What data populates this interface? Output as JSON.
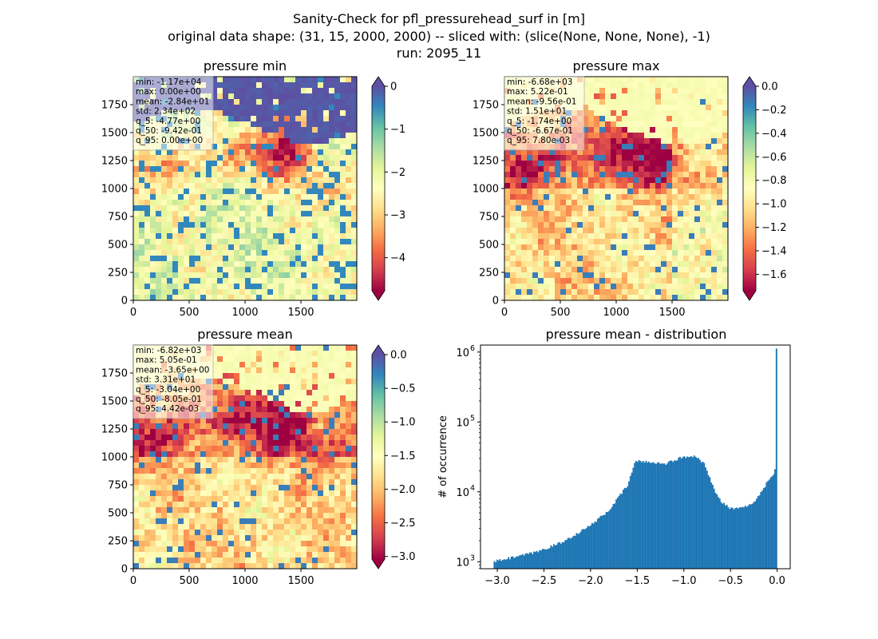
{
  "figure": {
    "title_lines": [
      "Sanity-Check for pfl_pressurehead_surf in [m]",
      "original data shape: (31, 15, 2000, 2000) -- sliced with: (slice(None, None, None), -1)",
      "run: 2095_11"
    ]
  },
  "colors": {
    "spectral": [
      "#9e0142",
      "#d53e4f",
      "#f46d43",
      "#fdae61",
      "#fee08b",
      "#ffffbf",
      "#e6f598",
      "#abdda4",
      "#66c2a5",
      "#3288bd",
      "#5e4fa2"
    ],
    "hist_bar": "#1f77b4"
  },
  "chart_data": [
    {
      "type": "heatmap",
      "title": "pressure min",
      "xlim": [
        0,
        2000
      ],
      "ylim": [
        0,
        2000
      ],
      "xticks": [
        "0",
        "500",
        "1000",
        "1500"
      ],
      "yticks": [
        "0",
        "250",
        "500",
        "750",
        "1000",
        "1250",
        "1500",
        "1750"
      ],
      "colorbar": {
        "min": -4.77,
        "max": 0.0,
        "ticks": [
          "0",
          "−1",
          "−2",
          "−3",
          "−4"
        ],
        "tick_values": [
          0,
          -1,
          -2,
          -3,
          -4
        ],
        "extend": "both"
      },
      "stats": [
        "min: -1.17e+04",
        "max: 0.00e+00",
        "mean: -2.84e+01",
        "std: 2.34e+02",
        "q_5: -4.77e+00",
        "q_50: -9.42e-01",
        "q_95: 0.00e+00"
      ],
      "colormap": "Spectral"
    },
    {
      "type": "heatmap",
      "title": "pressure max",
      "xlim": [
        0,
        2000
      ],
      "ylim": [
        0,
        2000
      ],
      "xticks": [
        "0",
        "500",
        "1000",
        "1500"
      ],
      "yticks": [
        "0",
        "250",
        "500",
        "750",
        "1000",
        "1250",
        "1500",
        "1750"
      ],
      "colorbar": {
        "min": -1.74,
        "max": 0.0,
        "ticks": [
          "0.0",
          "−0.2",
          "−0.4",
          "−0.6",
          "−0.8",
          "−1.0",
          "−1.2",
          "−1.4",
          "−1.6"
        ],
        "tick_values": [
          0,
          -0.2,
          -0.4,
          -0.6,
          -0.8,
          -1.0,
          -1.2,
          -1.4,
          -1.6
        ],
        "extend": "both"
      },
      "stats": [
        "min: -6.68e+03",
        "max: 5.22e-01",
        "mean: -9.56e-01",
        "std: 1.51e+01",
        "q_5: -1.74e+00",
        "q_50: -6.67e-01",
        "q_95: 7.80e-03"
      ],
      "colormap": "Spectral"
    },
    {
      "type": "heatmap",
      "title": "pressure mean",
      "xlim": [
        0,
        2000
      ],
      "ylim": [
        0,
        2000
      ],
      "xticks": [
        "0",
        "500",
        "1000",
        "1500"
      ],
      "yticks": [
        "0",
        "250",
        "500",
        "750",
        "1000",
        "1250",
        "1500",
        "1750"
      ],
      "colorbar": {
        "min": -3.04,
        "max": 0.0,
        "ticks": [
          "0.0",
          "−0.5",
          "−1.0",
          "−1.5",
          "−2.0",
          "−2.5",
          "−3.0"
        ],
        "tick_values": [
          0,
          -0.5,
          -1.0,
          -1.5,
          -2.0,
          -2.5,
          -3.0
        ],
        "extend": "both"
      },
      "stats": [
        "min: -6.82e+03",
        "max: 5.05e-01",
        "mean: -3.65e+00",
        "std: 3.31e+01",
        "q_5: -3.04e+00",
        "q_50: -8.05e-01",
        "q_95: 4.42e-03"
      ],
      "colormap": "Spectral"
    },
    {
      "type": "bar",
      "title": "pressure mean - distribution",
      "xlabel": "",
      "ylabel": "# of occurrence",
      "xlim": [
        -3.18,
        0.14
      ],
      "ylim_log10": [
        2.9,
        6.1
      ],
      "yscale": "log",
      "xticks": [
        "−3.0",
        "−2.5",
        "−2.0",
        "−1.5",
        "−1.0",
        "−0.5",
        "0.0"
      ],
      "xtick_values": [
        -3.0,
        -2.5,
        -2.0,
        -1.5,
        -1.0,
        -0.5,
        0.0
      ],
      "yticks": [
        "10",
        "10",
        "10",
        "10"
      ],
      "ytick_exponents": [
        "3",
        "4",
        "5",
        "6"
      ],
      "ytick_log10": [
        3,
        4,
        5,
        6
      ],
      "bin_range": [
        -3.04,
        0.0
      ],
      "bins": 200,
      "profile_x": [
        -3.04,
        -2.9,
        -2.6,
        -2.3,
        -2.0,
        -1.8,
        -1.6,
        -1.52,
        -1.4,
        -1.2,
        -1.05,
        -0.88,
        -0.78,
        -0.72,
        -0.66,
        -0.6,
        -0.5,
        -0.4,
        -0.3,
        -0.2,
        -0.1,
        -0.03,
        -0.012,
        -0.003
      ],
      "profile_log10": [
        3.0,
        3.04,
        3.13,
        3.28,
        3.52,
        3.74,
        4.1,
        4.44,
        4.43,
        4.4,
        4.48,
        4.52,
        4.4,
        4.2,
        3.98,
        3.86,
        3.76,
        3.76,
        3.8,
        3.93,
        4.15,
        4.27,
        4.38,
        6.05
      ]
    }
  ]
}
